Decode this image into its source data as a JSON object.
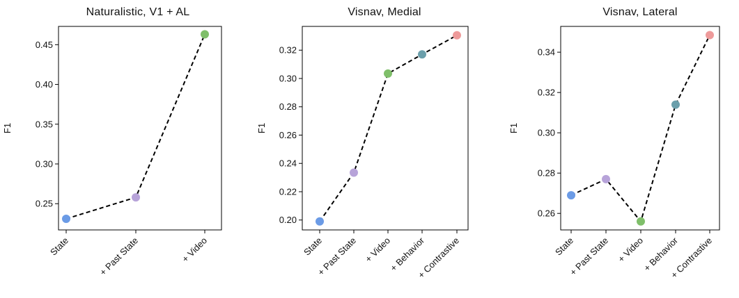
{
  "chart_data": [
    {
      "type": "line",
      "title": "Naturalistic, V1 +  AL",
      "ylabel": "F1",
      "categories": [
        "State",
        "+ Past State",
        "+ Video"
      ],
      "values": [
        0.231,
        0.258,
        0.463
      ],
      "point_colors": [
        "#6b9be6",
        "#b7a3d9",
        "#7fbf6a"
      ],
      "ylim": [
        0.217,
        0.473
      ],
      "yticks": [
        0.25,
        0.3,
        0.35,
        0.4,
        0.45
      ],
      "ytick_labels": [
        "0.25",
        "0.30",
        "0.35",
        "0.40",
        "0.45"
      ],
      "grid": false
    },
    {
      "type": "line",
      "title": "Visnav, Medial",
      "ylabel": "F1",
      "categories": [
        "State",
        "+ Past State",
        "+ Video",
        "+ Behavior",
        "+ Contrastive"
      ],
      "values": [
        0.199,
        0.2335,
        0.3035,
        0.317,
        0.3305
      ],
      "point_colors": [
        "#6b9be6",
        "#b7a3d9",
        "#7fbf6a",
        "#6b9fab",
        "#ee9b9b"
      ],
      "ylim": [
        0.193,
        0.3368
      ],
      "yticks": [
        0.2,
        0.22,
        0.24,
        0.26,
        0.28,
        0.3,
        0.32
      ],
      "ytick_labels": [
        "0.20",
        "0.22",
        "0.24",
        "0.26",
        "0.28",
        "0.30",
        "0.32"
      ],
      "grid": false
    },
    {
      "type": "line",
      "title": "Visnav, Lateral",
      "ylabel": "F1",
      "categories": [
        "State",
        "+ Past State",
        "+ Video",
        "+ Behavior",
        "+ Contrastive"
      ],
      "values": [
        0.269,
        0.277,
        0.256,
        0.314,
        0.3485
      ],
      "point_colors": [
        "#6b9be6",
        "#b7a3d9",
        "#7fbf6a",
        "#6b9fab",
        "#ee9b9b"
      ],
      "ylim": [
        0.2518,
        0.3528
      ],
      "yticks": [
        0.26,
        0.28,
        0.3,
        0.32,
        0.34
      ],
      "ytick_labels": [
        "0.26",
        "0.28",
        "0.30",
        "0.32",
        "0.34"
      ],
      "grid": false
    }
  ]
}
